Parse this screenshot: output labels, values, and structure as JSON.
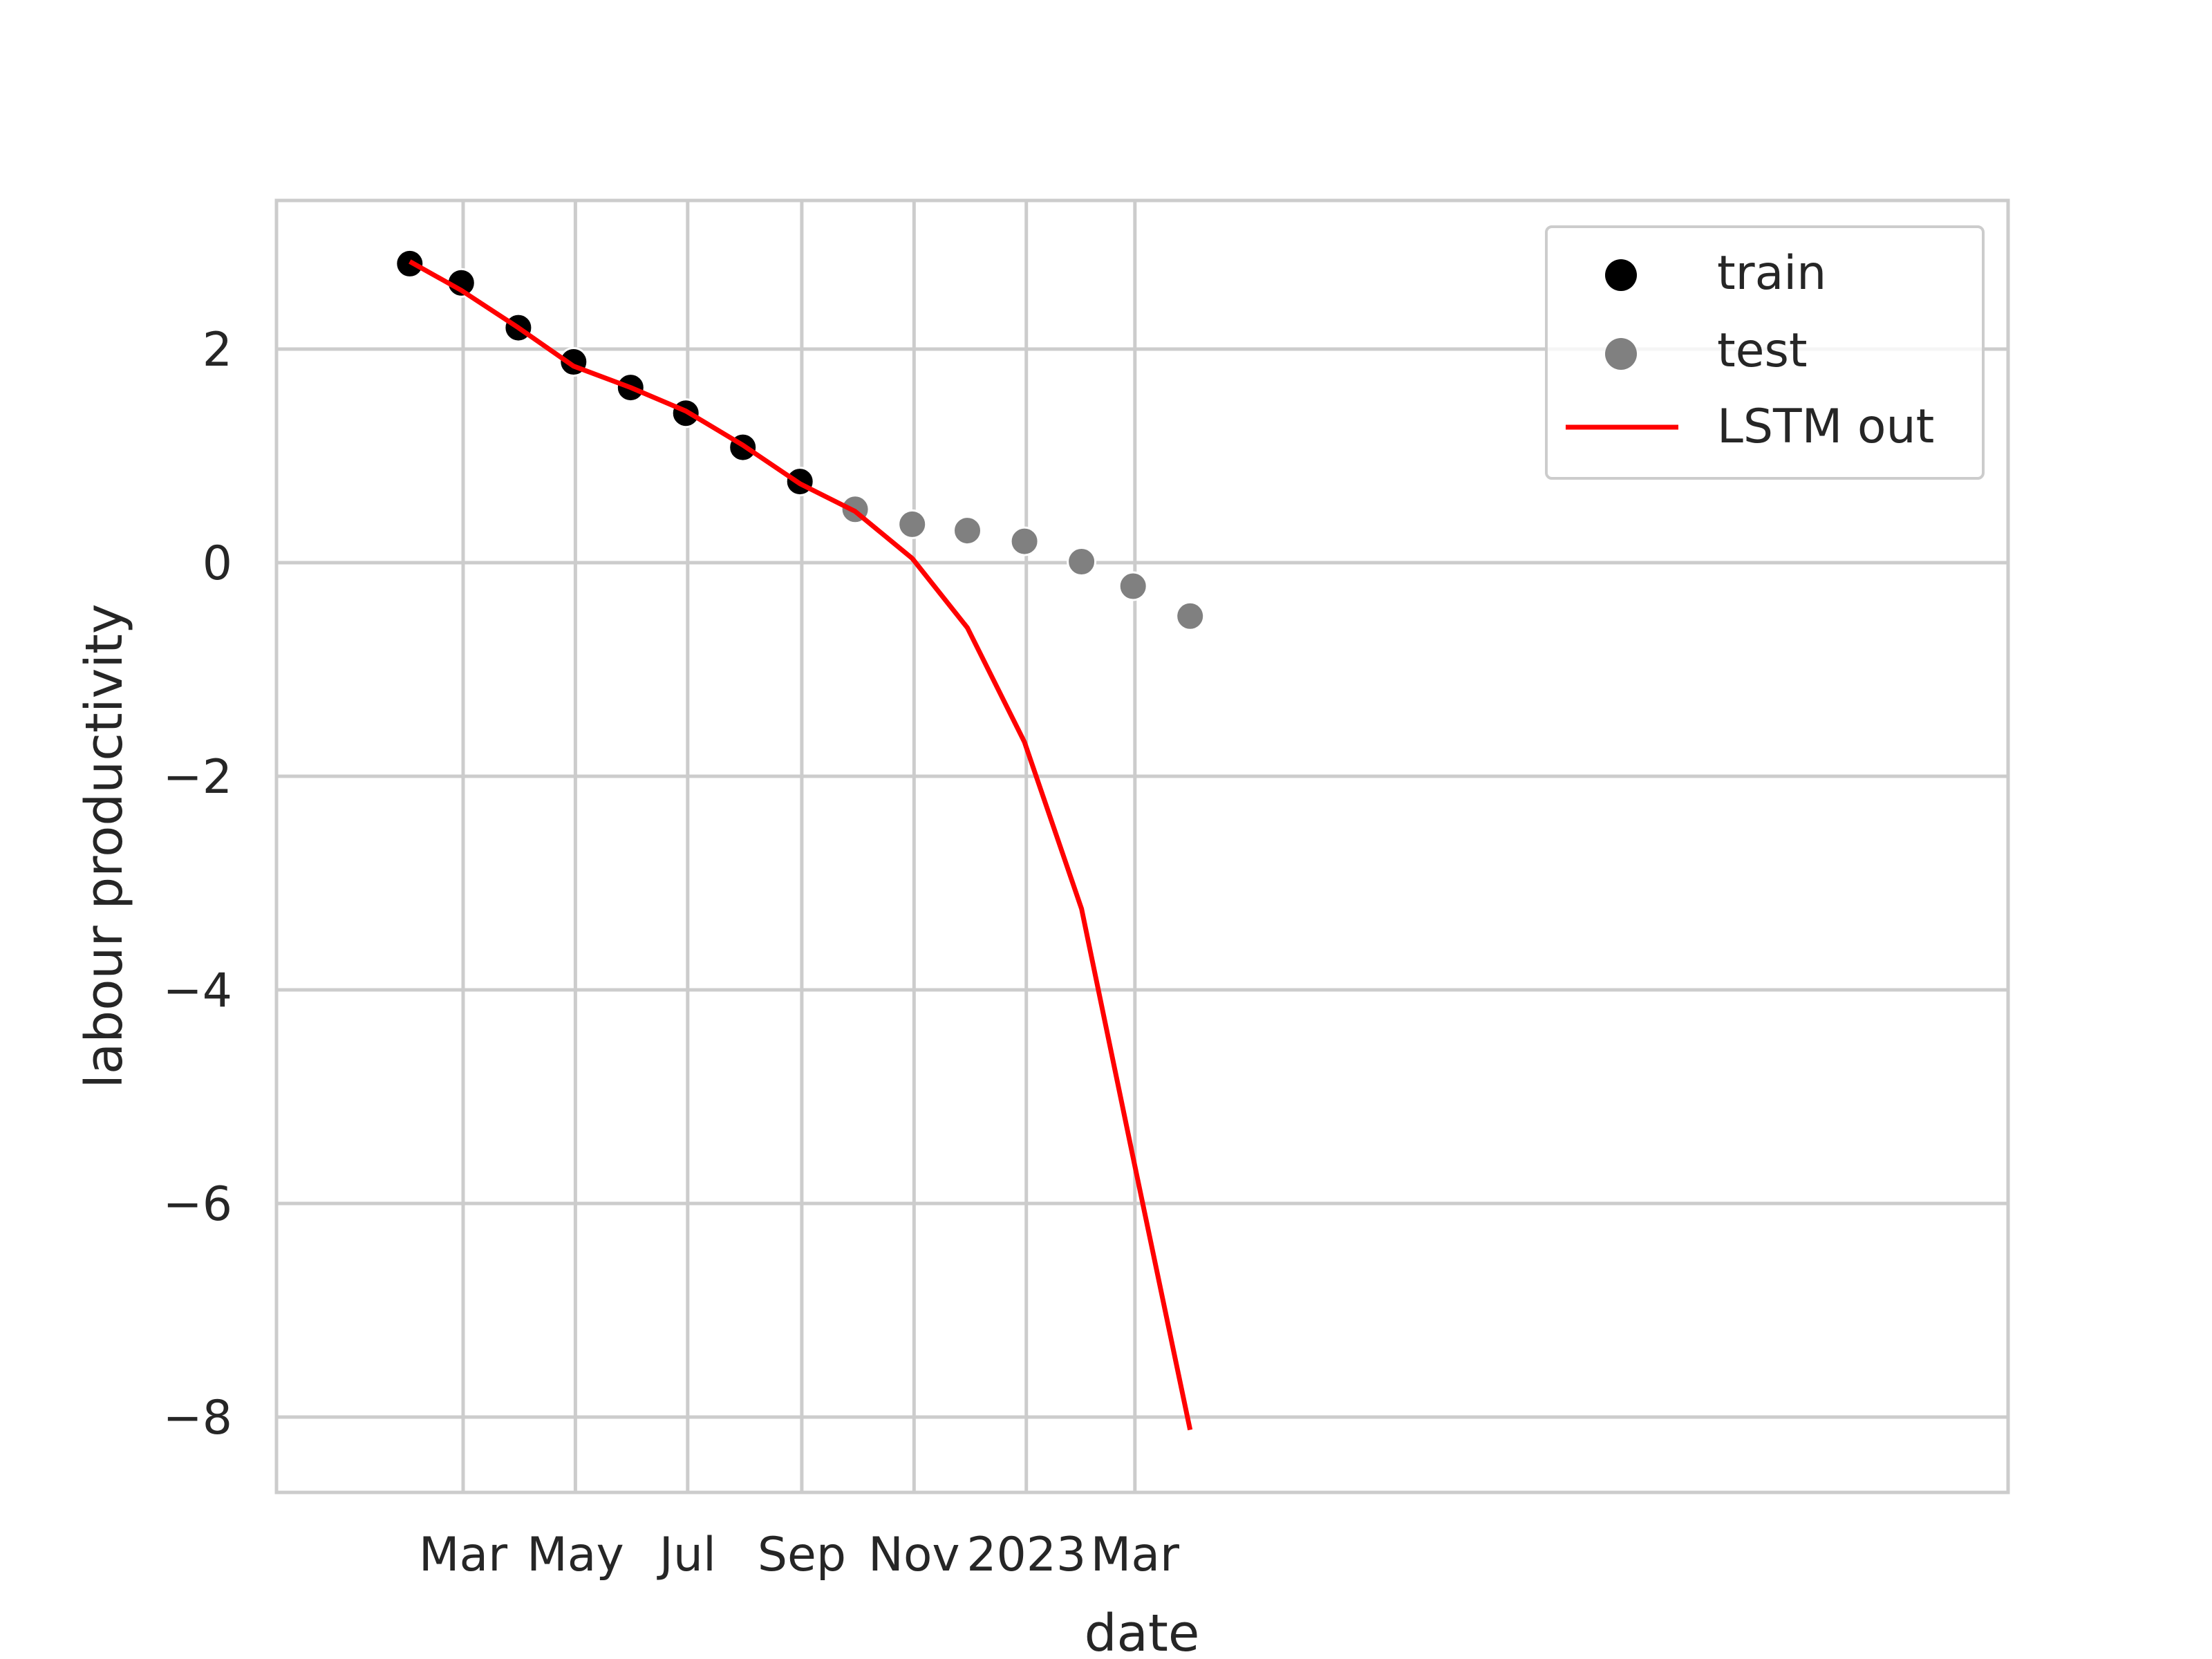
{
  "chart_data": {
    "type": "line",
    "title": "",
    "xlabel": "date",
    "ylabel": "labour productivity",
    "grid": true,
    "legend_position": "top-right",
    "x_ticks": [
      "Mar",
      "May",
      "Jul",
      "Sep",
      "Nov",
      "2023",
      "Mar"
    ],
    "y_ticks": [
      "2",
      "0",
      "−2",
      "−4",
      "−6",
      "−8"
    ],
    "series": [
      {
        "name": "train",
        "kind": "scatter",
        "color": "#000000",
        "x": [
          "2022-01-31",
          "2022-02-28",
          "2022-03-31",
          "2022-04-30",
          "2022-05-31",
          "2022-06-30",
          "2022-07-31",
          "2022-08-31"
        ],
        "y": [
          2.8,
          2.62,
          2.2,
          1.88,
          1.64,
          1.4,
          1.08,
          0.76
        ]
      },
      {
        "name": "test",
        "kind": "scatter",
        "color": "#808080",
        "x": [
          "2022-09-30",
          "2022-10-31",
          "2022-11-30",
          "2022-12-31",
          "2023-01-31",
          "2023-02-28",
          "2023-03-31"
        ],
        "y": [
          0.5,
          0.36,
          0.3,
          0.2,
          0.01,
          -0.22,
          -0.5
        ]
      },
      {
        "name": "LSTM out",
        "kind": "line",
        "color": "#ff0000",
        "x": [
          "2022-01-31",
          "2022-02-28",
          "2022-03-31",
          "2022-04-30",
          "2022-05-31",
          "2022-06-30",
          "2022-07-31",
          "2022-08-31",
          "2022-09-30",
          "2022-10-31",
          "2022-11-30",
          "2022-12-31",
          "2023-01-31",
          "2023-02-28",
          "2023-03-31"
        ],
        "y": [
          2.82,
          2.55,
          2.2,
          1.84,
          1.64,
          1.42,
          1.1,
          0.74,
          0.48,
          0.04,
          -0.61,
          -1.68,
          -3.24,
          -5.57,
          -8.12
        ]
      }
    ]
  }
}
